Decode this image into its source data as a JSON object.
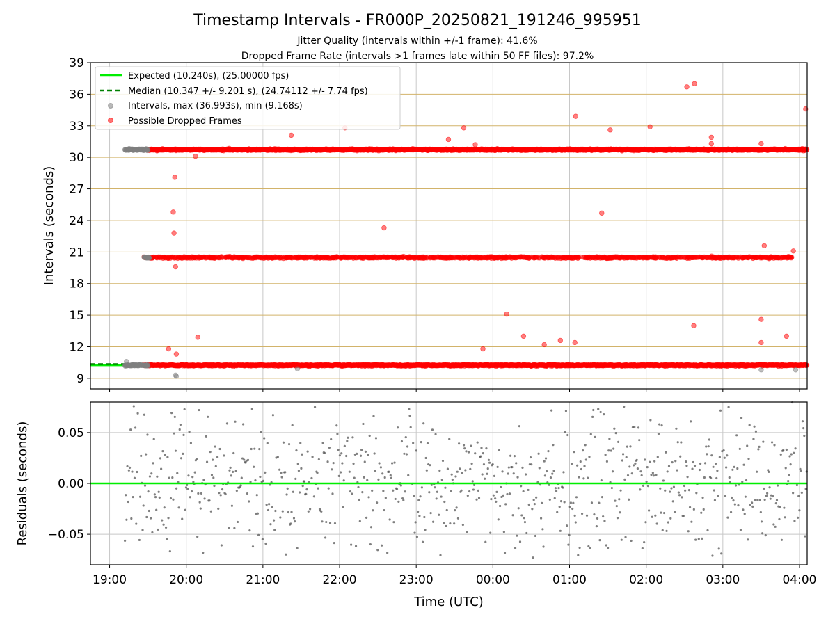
{
  "figure": {
    "title": "Timestamp Intervals - FR000P_20250821_191246_995951",
    "subtitle1": "Jitter Quality (intervals within +/-1 frame): 41.6%",
    "subtitle2": "Dropped Frame Rate (intervals >1 frames late within 50 FF files): 97.2%"
  },
  "colors": {
    "expected": "#00ee00",
    "median": "#008000",
    "interval_points": "#808080",
    "dropped_points": "#ff0000",
    "hgrid": "#d2b36a",
    "vgrid": "#c8c8c8",
    "residual_points": "#555555"
  },
  "chart_data": [
    {
      "type": "scatter",
      "name": "intervals-panel",
      "xlabel": "",
      "ylabel": "Intervals (seconds)",
      "ylim": [
        8,
        39
      ],
      "yticks": [
        9,
        12,
        15,
        18,
        21,
        24,
        27,
        30,
        33,
        36,
        39
      ],
      "ytick_labels": [
        "9",
        "12",
        "15",
        "18",
        "21",
        "24",
        "27",
        "30",
        "33",
        "36",
        "39"
      ],
      "xlim_hours": [
        18.75,
        28.1
      ],
      "grid": true,
      "legend_position": "upper-left",
      "legend": [
        {
          "label": "Expected (10.240s), (25.00000 fps)",
          "style": "line"
        },
        {
          "label": "Median (10.347 +/- 9.201 s), (24.74112 +/- 7.74 fps)",
          "style": "dashed"
        },
        {
          "label": "Intervals, max (36.993s), min (9.168s)",
          "style": "gray-dot"
        },
        {
          "label": "Possible Dropped Frames",
          "style": "red-dot"
        }
      ],
      "expected_interval": 10.24,
      "median_interval": 10.347,
      "clusters": [
        {
          "series": "dropped",
          "y": 10.24,
          "x_start": 19.45,
          "x_end": 28.1
        },
        {
          "series": "dropped",
          "y": 20.48,
          "x_start": 19.45,
          "x_end": 27.9
        },
        {
          "series": "dropped",
          "y": 30.72,
          "x_start": 19.45,
          "x_end": 28.1
        },
        {
          "series": "intervals",
          "y": 10.24,
          "x_start": 19.2,
          "x_end": 19.5
        },
        {
          "series": "intervals",
          "y": 30.72,
          "x_start": 19.2,
          "x_end": 19.5
        },
        {
          "series": "intervals",
          "y": 20.48,
          "x_start": 19.45,
          "x_end": 19.52
        }
      ],
      "outliers_dropped": [
        {
          "x": 19.77,
          "y": 11.8
        },
        {
          "x": 19.87,
          "y": 11.3
        },
        {
          "x": 19.86,
          "y": 19.6
        },
        {
          "x": 19.84,
          "y": 22.8
        },
        {
          "x": 19.83,
          "y": 24.8
        },
        {
          "x": 19.85,
          "y": 28.1
        },
        {
          "x": 20.15,
          "y": 12.9
        },
        {
          "x": 20.12,
          "y": 30.1
        },
        {
          "x": 21.37,
          "y": 32.1
        },
        {
          "x": 22.07,
          "y": 32.8
        },
        {
          "x": 22.58,
          "y": 23.3
        },
        {
          "x": 23.42,
          "y": 31.7
        },
        {
          "x": 23.62,
          "y": 32.8
        },
        {
          "x": 23.77,
          "y": 31.2
        },
        {
          "x": 24.18,
          "y": 15.1
        },
        {
          "x": 23.87,
          "y": 11.8
        },
        {
          "x": 24.4,
          "y": 13.0
        },
        {
          "x": 24.67,
          "y": 12.2
        },
        {
          "x": 24.88,
          "y": 12.6
        },
        {
          "x": 25.07,
          "y": 12.4
        },
        {
          "x": 25.08,
          "y": 33.9
        },
        {
          "x": 25.42,
          "y": 24.7
        },
        {
          "x": 25.53,
          "y": 32.6
        },
        {
          "x": 26.05,
          "y": 32.9
        },
        {
          "x": 26.53,
          "y": 36.7
        },
        {
          "x": 26.63,
          "y": 37.0
        },
        {
          "x": 26.62,
          "y": 14.0
        },
        {
          "x": 26.85,
          "y": 31.9
        },
        {
          "x": 26.85,
          "y": 31.3
        },
        {
          "x": 27.5,
          "y": 31.3
        },
        {
          "x": 27.5,
          "y": 12.4
        },
        {
          "x": 27.5,
          "y": 14.6
        },
        {
          "x": 27.54,
          "y": 21.6
        },
        {
          "x": 27.83,
          "y": 13.0
        },
        {
          "x": 27.92,
          "y": 21.1
        },
        {
          "x": 28.08,
          "y": 34.6
        }
      ],
      "outliers_intervals": [
        {
          "x": 19.22,
          "y": 10.6
        },
        {
          "x": 19.86,
          "y": 9.3
        },
        {
          "x": 19.87,
          "y": 9.2
        },
        {
          "x": 21.45,
          "y": 9.9
        },
        {
          "x": 27.5,
          "y": 9.8
        },
        {
          "x": 27.95,
          "y": 9.8
        }
      ]
    },
    {
      "type": "scatter",
      "name": "residuals-panel",
      "xlabel": "Time (UTC)",
      "ylabel": "Residuals (seconds)",
      "ylim": [
        -0.08,
        0.08
      ],
      "yticks": [
        -0.05,
        0.0,
        0.05
      ],
      "ytick_labels": [
        "−0.05",
        "0.00",
        "0.05"
      ],
      "xlim_hours": [
        18.75,
        28.1
      ],
      "xticks_hours": [
        19,
        20,
        21,
        22,
        23,
        24,
        25,
        26,
        27,
        28
      ],
      "xtick_labels": [
        "19:00",
        "20:00",
        "21:00",
        "22:00",
        "23:00",
        "00:00",
        "01:00",
        "02:00",
        "03:00",
        "04:00"
      ],
      "zero_line": 0.0,
      "residual_spread_sd": 0.035,
      "x_start": 19.2,
      "x_end": 28.1,
      "grid": true
    }
  ]
}
